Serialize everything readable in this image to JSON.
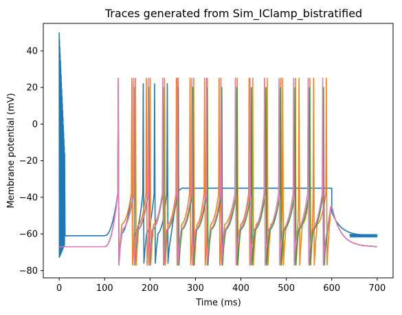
{
  "chart_data": {
    "type": "line",
    "title": "Traces generated from Sim_IClamp_bistratified",
    "xlabel": "Time (ms)",
    "ylabel": "Membrane potential (mV)",
    "xlim": [
      -35,
      735
    ],
    "ylim": [
      -84,
      55
    ],
    "xticks": [
      0,
      100,
      200,
      300,
      400,
      500,
      600,
      700
    ],
    "yticks": [
      -80,
      -60,
      -40,
      -20,
      0,
      20,
      40
    ],
    "grid": false,
    "legend": "none",
    "series": [
      {
        "color": "#1f77b4",
        "rest_mv": -61,
        "start_oscillation": {
          "t_start": 0,
          "t_end": 12,
          "v_min": -73,
          "v_max": 50
        },
        "spike_times_ms": [
          130,
          160,
          185,
          210,
          238
        ],
        "trough_mv": -76,
        "peak_mv": 22,
        "post_spike_mv": -60,
        "plateau_mv": -35,
        "plateau_range_ms": [
          270,
          600
        ],
        "stim_on_ms": 100,
        "stim_off_ms": 600,
        "tail_end_mv": -61,
        "end_noise_ms": [
          640,
          700
        ]
      },
      {
        "color": "#ff7f0e",
        "rest_mv": -67,
        "spike_times_ms": [
          130,
          160,
          168,
          192,
          200,
          228,
          232,
          258,
          262,
          288,
          296,
          320,
          326,
          352,
          356,
          388,
          392,
          418,
          426,
          452,
          458,
          488,
          492,
          520,
          528,
          552,
          560,
          588
        ],
        "trough_mv": -77,
        "peak_mv": 25,
        "post_spike_mv": -55,
        "stim_on_ms": 100,
        "stim_off_ms": 600,
        "tail_end_mv": -67
      },
      {
        "color": "#2ca02c",
        "rest_mv": -67,
        "spike_times_ms": [
          130,
          165,
          197,
          229,
          262,
          294,
          326,
          358,
          391,
          423,
          455,
          487,
          519,
          551,
          582
        ],
        "trough_mv": -77,
        "peak_mv": 20,
        "post_spike_mv": -58,
        "stim_on_ms": 100,
        "stim_off_ms": 600,
        "tail_end_mv": -67
      },
      {
        "color": "#e377c2",
        "rest_mv": -67,
        "spike_times_ms": [
          130,
          164,
          196,
          228,
          260,
          292,
          324,
          356,
          388,
          420,
          452,
          484,
          516,
          548,
          580
        ],
        "trough_mv": -77,
        "peak_mv": 25,
        "post_spike_mv": -58,
        "stim_on_ms": 100,
        "stim_off_ms": 600,
        "tail_end_mv": -67
      }
    ]
  }
}
